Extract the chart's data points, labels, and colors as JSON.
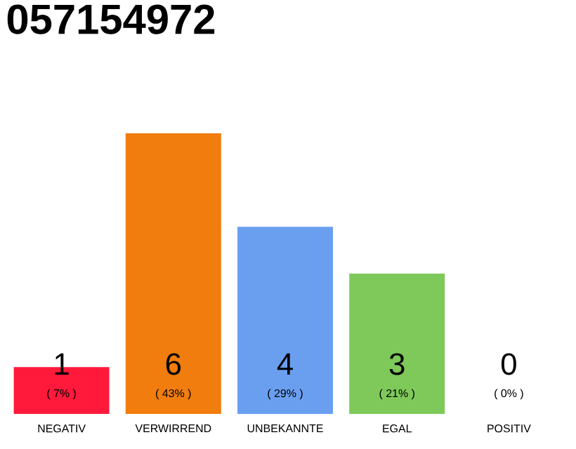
{
  "chart_data": {
    "type": "bar",
    "title": "057154972",
    "categories": [
      "NEGATIV",
      "VERWIRREND",
      "UNBEKANNTE",
      "EGAL",
      "POSITIV"
    ],
    "values": [
      1,
      6,
      4,
      3,
      0
    ],
    "colors": [
      "#ff1a3c",
      "#f07d0e",
      "#6a9ff0",
      "#7ec95a",
      "#7ec95a"
    ],
    "data_labels": true,
    "annotations": [
      "( 7% )",
      "( 43% )",
      "( 29% )",
      "( 21% )",
      "( 0% )"
    ]
  }
}
